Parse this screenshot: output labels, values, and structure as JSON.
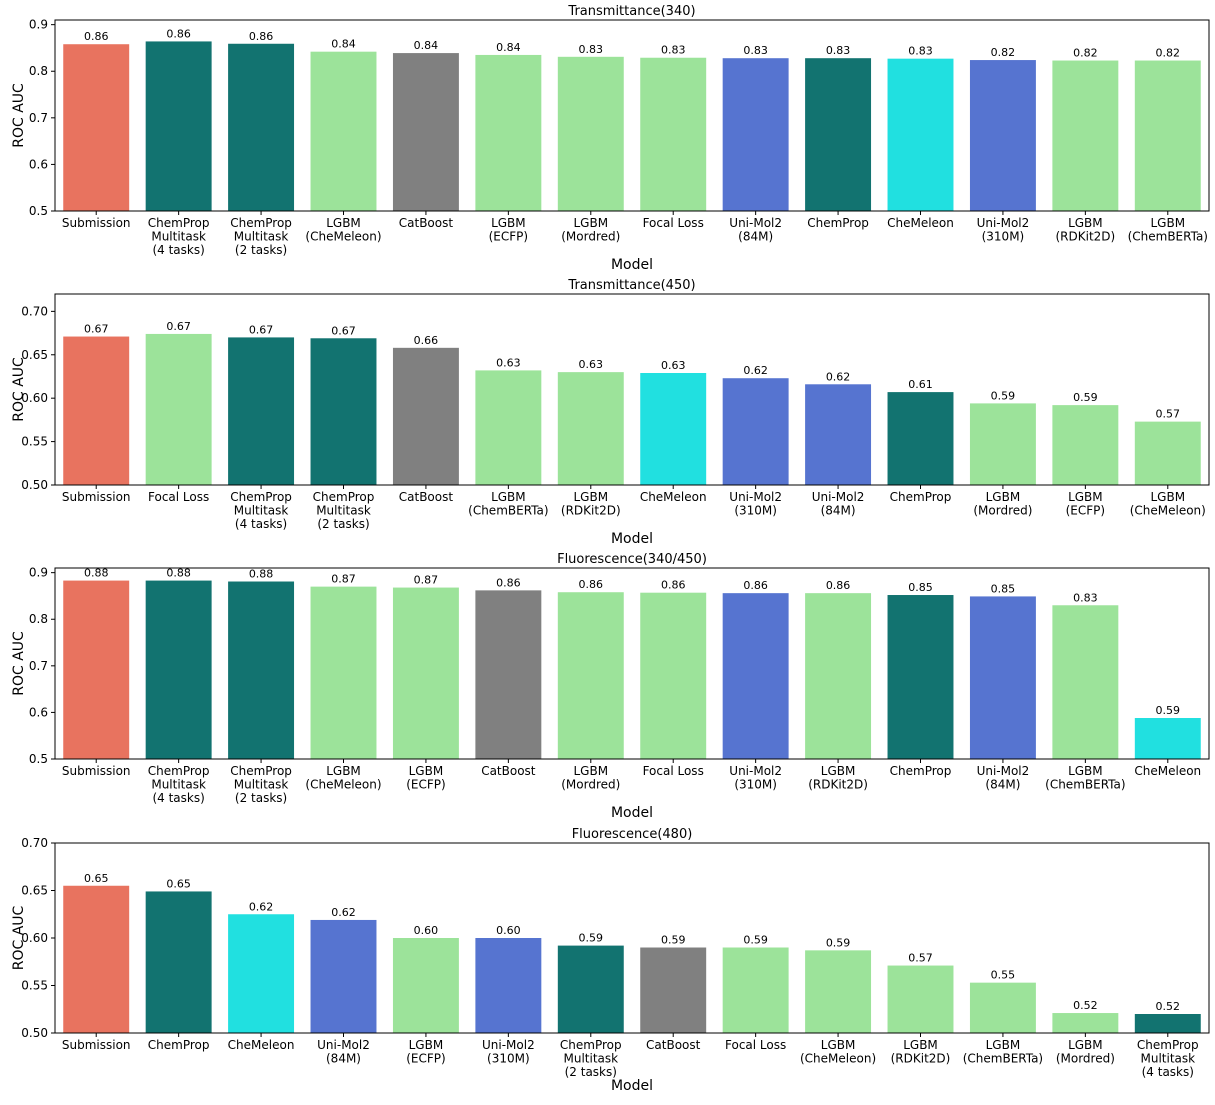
{
  "colors": {
    "submission": "#e8735f",
    "chemprop": "#127370",
    "lgbm": "#9ce39a",
    "catboost": "#808080",
    "unimol": "#5674d0",
    "chemeleon": "#21e0e0"
  },
  "chart_data": [
    {
      "type": "bar",
      "title": "Transmittance(340)",
      "xlabel": "Model",
      "ylabel": "ROC AUC",
      "ylim": [
        0.5,
        0.91
      ],
      "yticks": [
        "0.5",
        "0.6",
        "0.7",
        "0.8",
        "0.9"
      ],
      "ytick_values": [
        0.5,
        0.6,
        0.7,
        0.8,
        0.9
      ],
      "categories": [
        [
          "Submission"
        ],
        [
          "ChemProp",
          "Multitask",
          "(4 tasks)"
        ],
        [
          "ChemProp",
          "Multitask",
          "(2 tasks)"
        ],
        [
          "LGBM",
          "(CheMeleon)"
        ],
        [
          "CatBoost"
        ],
        [
          "LGBM",
          "(ECFP)"
        ],
        [
          "LGBM",
          "(Mordred)"
        ],
        [
          "Focal Loss"
        ],
        [
          "Uni-Mol2",
          "(84M)"
        ],
        [
          "ChemProp"
        ],
        [
          "CheMeleon"
        ],
        [
          "Uni-Mol2",
          "(310M)"
        ],
        [
          "LGBM",
          "(RDKit2D)"
        ],
        [
          "LGBM",
          "(ChemBERTa)"
        ]
      ],
      "values": [
        0.858,
        0.864,
        0.859,
        0.842,
        0.839,
        0.835,
        0.831,
        0.829,
        0.828,
        0.828,
        0.827,
        0.824,
        0.823,
        0.823
      ],
      "labels": [
        "0.86",
        "0.86",
        "0.86",
        "0.84",
        "0.84",
        "0.84",
        "0.83",
        "0.83",
        "0.83",
        "0.83",
        "0.83",
        "0.82",
        "0.82",
        "0.82"
      ],
      "groups": [
        "submission",
        "chemprop",
        "chemprop",
        "lgbm",
        "catboost",
        "lgbm",
        "lgbm",
        "lgbm",
        "unimol",
        "chemprop",
        "chemeleon",
        "unimol",
        "lgbm",
        "lgbm"
      ]
    },
    {
      "type": "bar",
      "title": "Transmittance(450)",
      "xlabel": "Model",
      "ylabel": "ROC AUC",
      "ylim": [
        0.5,
        0.72
      ],
      "yticks": [
        "0.50",
        "0.55",
        "0.60",
        "0.65",
        "0.70"
      ],
      "ytick_values": [
        0.5,
        0.55,
        0.6,
        0.65,
        0.7
      ],
      "categories": [
        [
          "Submission"
        ],
        [
          "Focal Loss"
        ],
        [
          "ChemProp",
          "Multitask",
          "(4 tasks)"
        ],
        [
          "ChemProp",
          "Multitask",
          "(2 tasks)"
        ],
        [
          "CatBoost"
        ],
        [
          "LGBM",
          "(ChemBERTa)"
        ],
        [
          "LGBM",
          "(RDKit2D)"
        ],
        [
          "CheMeleon"
        ],
        [
          "Uni-Mol2",
          "(310M)"
        ],
        [
          "Uni-Mol2",
          "(84M)"
        ],
        [
          "ChemProp"
        ],
        [
          "LGBM",
          "(Mordred)"
        ],
        [
          "LGBM",
          "(ECFP)"
        ],
        [
          "LGBM",
          "(CheMeleon)"
        ]
      ],
      "values": [
        0.671,
        0.674,
        0.67,
        0.669,
        0.658,
        0.632,
        0.63,
        0.629,
        0.623,
        0.616,
        0.607,
        0.594,
        0.592,
        0.573
      ],
      "labels": [
        "0.67",
        "0.67",
        "0.67",
        "0.67",
        "0.66",
        "0.63",
        "0.63",
        "0.63",
        "0.62",
        "0.62",
        "0.61",
        "0.59",
        "0.59",
        "0.57"
      ],
      "groups": [
        "submission",
        "lgbm",
        "chemprop",
        "chemprop",
        "catboost",
        "lgbm",
        "lgbm",
        "chemeleon",
        "unimol",
        "unimol",
        "chemprop",
        "lgbm",
        "lgbm",
        "lgbm"
      ]
    },
    {
      "type": "bar",
      "title": "Fluorescence(340/450)",
      "xlabel": "Model",
      "ylabel": "ROC AUC",
      "ylim": [
        0.5,
        0.91
      ],
      "yticks": [
        "0.5",
        "0.6",
        "0.7",
        "0.8",
        "0.9"
      ],
      "ytick_values": [
        0.5,
        0.6,
        0.7,
        0.8,
        0.9
      ],
      "categories": [
        [
          "Submission"
        ],
        [
          "ChemProp",
          "Multitask",
          "(4 tasks)"
        ],
        [
          "ChemProp",
          "Multitask",
          "(2 tasks)"
        ],
        [
          "LGBM",
          "(CheMeleon)"
        ],
        [
          "LGBM",
          "(ECFP)"
        ],
        [
          "CatBoost"
        ],
        [
          "LGBM",
          "(Mordred)"
        ],
        [
          "Focal Loss"
        ],
        [
          "Uni-Mol2",
          "(310M)"
        ],
        [
          "LGBM",
          "(RDKit2D)"
        ],
        [
          "ChemProp"
        ],
        [
          "Uni-Mol2",
          "(84M)"
        ],
        [
          "LGBM",
          "(ChemBERTa)"
        ],
        [
          "CheMeleon"
        ]
      ],
      "values": [
        0.883,
        0.883,
        0.881,
        0.87,
        0.868,
        0.862,
        0.858,
        0.857,
        0.856,
        0.856,
        0.852,
        0.849,
        0.83,
        0.588
      ],
      "labels": [
        "0.88",
        "0.88",
        "0.88",
        "0.87",
        "0.87",
        "0.86",
        "0.86",
        "0.86",
        "0.86",
        "0.86",
        "0.85",
        "0.85",
        "0.83",
        "0.59"
      ],
      "groups": [
        "submission",
        "chemprop",
        "chemprop",
        "lgbm",
        "lgbm",
        "catboost",
        "lgbm",
        "lgbm",
        "unimol",
        "lgbm",
        "chemprop",
        "unimol",
        "lgbm",
        "chemeleon"
      ]
    },
    {
      "type": "bar",
      "title": "Fluorescence(480)",
      "xlabel": "Model",
      "ylabel": "ROC AUC",
      "ylim": [
        0.5,
        0.7
      ],
      "yticks": [
        "0.50",
        "0.55",
        "0.60",
        "0.65",
        "0.70"
      ],
      "ytick_values": [
        0.5,
        0.55,
        0.6,
        0.65,
        0.7
      ],
      "categories": [
        [
          "Submission"
        ],
        [
          "ChemProp"
        ],
        [
          "CheMeleon"
        ],
        [
          "Uni-Mol2",
          "(84M)"
        ],
        [
          "LGBM",
          "(ECFP)"
        ],
        [
          "Uni-Mol2",
          "(310M)"
        ],
        [
          "ChemProp",
          "Multitask",
          "(2 tasks)"
        ],
        [
          "CatBoost"
        ],
        [
          "Focal Loss"
        ],
        [
          "LGBM",
          "(CheMeleon)"
        ],
        [
          "LGBM",
          "(RDKit2D)"
        ],
        [
          "LGBM",
          "(ChemBERTa)"
        ],
        [
          "LGBM",
          "(Mordred)"
        ],
        [
          "ChemProp",
          "Multitask",
          "(4 tasks)"
        ]
      ],
      "values": [
        0.655,
        0.649,
        0.625,
        0.619,
        0.6,
        0.6,
        0.592,
        0.59,
        0.59,
        0.587,
        0.571,
        0.553,
        0.521,
        0.52
      ],
      "labels": [
        "0.65",
        "0.65",
        "0.62",
        "0.62",
        "0.60",
        "0.60",
        "0.59",
        "0.59",
        "0.59",
        "0.59",
        "0.57",
        "0.55",
        "0.52",
        "0.52"
      ],
      "groups": [
        "submission",
        "chemprop",
        "chemeleon",
        "unimol",
        "lgbm",
        "unimol",
        "chemprop",
        "catboost",
        "lgbm",
        "lgbm",
        "lgbm",
        "lgbm",
        "lgbm",
        "chemprop"
      ]
    }
  ]
}
